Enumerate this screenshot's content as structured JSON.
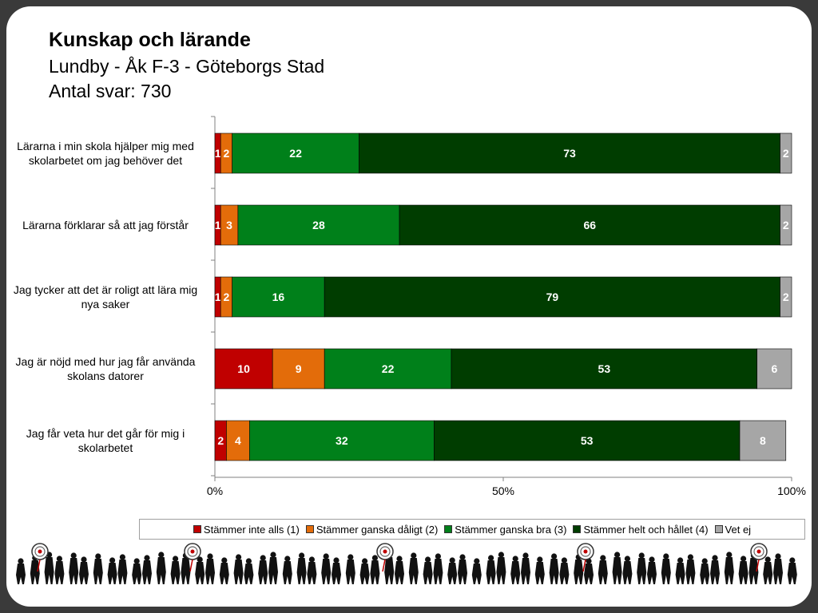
{
  "header": {
    "title": "Kunskap och lärande",
    "subtitle": "Lundby - Åk F-3 - Göteborgs Stad",
    "count": "Antal svar: 730"
  },
  "chart_data": {
    "type": "bar",
    "orientation": "horizontal",
    "stacked": true,
    "categories": [
      [
        "Lärarna i min skola hjälper mig med",
        "skolarbetet om jag behöver det"
      ],
      [
        "Lärarna förklarar så att jag förstår"
      ],
      [
        "Jag tycker att det är roligt att lära mig",
        "nya saker"
      ],
      [
        "Jag är nöjd med hur jag får använda",
        "skolans datorer"
      ],
      [
        "Jag får veta hur det går för mig i",
        "skolarbetet"
      ]
    ],
    "series": [
      {
        "name": "Stämmer inte alls (1)",
        "color": "#c00000",
        "values": [
          1,
          1,
          1,
          10,
          2
        ]
      },
      {
        "name": "Stämmer ganska dåligt (2)",
        "color": "#e36c0a",
        "values": [
          2,
          3,
          2,
          9,
          4
        ]
      },
      {
        "name": "Stämmer ganska bra (3)",
        "color": "#00801a",
        "values": [
          22,
          28,
          16,
          22,
          32
        ]
      },
      {
        "name": "Stämmer helt och hållet (4)",
        "color": "#003d00",
        "values": [
          73,
          66,
          79,
          53,
          53
        ]
      },
      {
        "name": "Vet ej",
        "color": "#a6a6a6",
        "values": [
          2,
          2,
          2,
          6,
          8
        ]
      }
    ],
    "x_ticks": [
      "0%",
      "50%",
      "100%"
    ],
    "xlim": [
      0,
      100
    ],
    "legend": "bottom"
  }
}
